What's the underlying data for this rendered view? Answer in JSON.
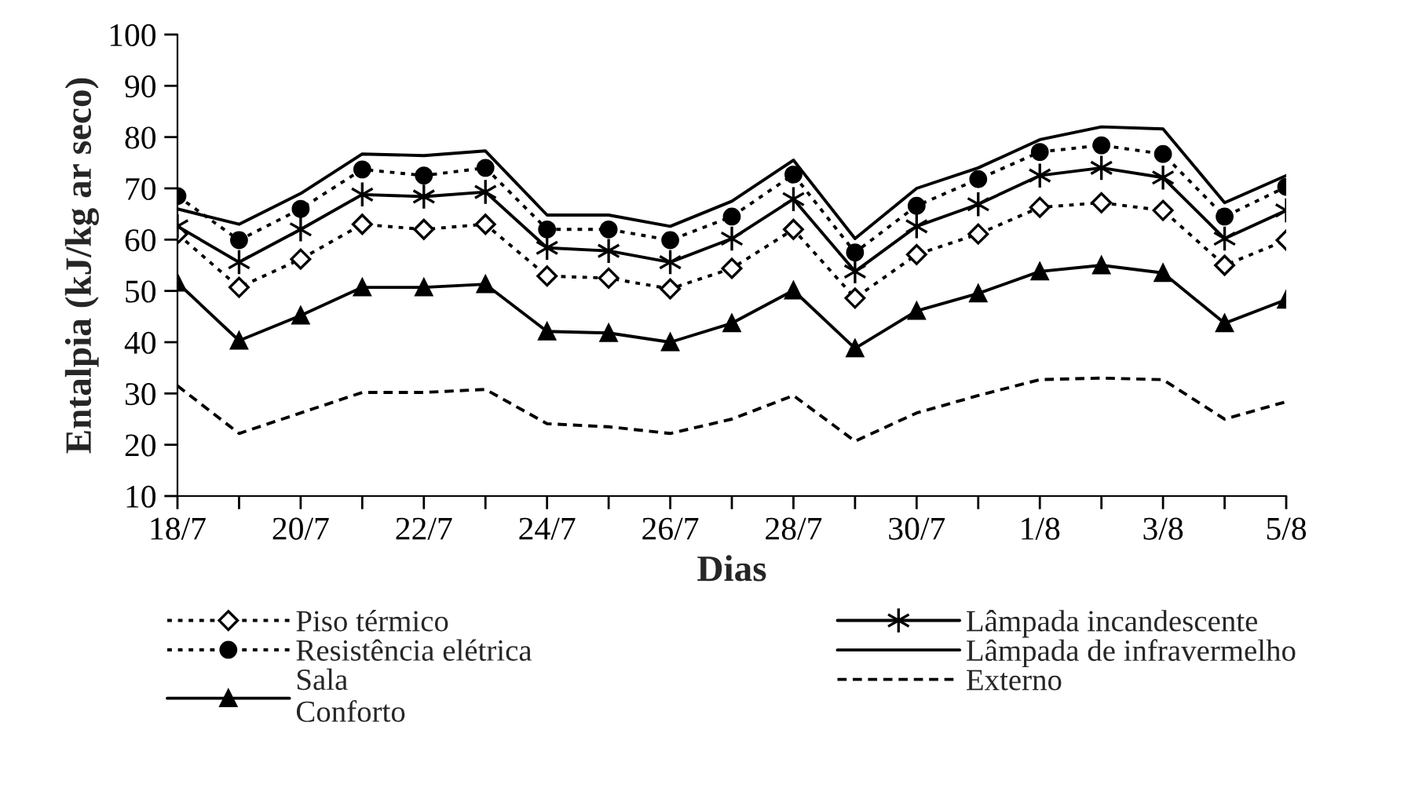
{
  "chart_data": {
    "type": "line",
    "xlabel": "Dias",
    "ylabel": "Entalpia (kJ/kg ar seco)",
    "categories": [
      "18/7",
      null,
      "20/7",
      null,
      "22/7",
      null,
      "24/7",
      null,
      "26/7",
      null,
      "28/7",
      null,
      "30/7",
      null,
      "1/8",
      null,
      "3/8",
      null,
      "5/8"
    ],
    "ylim": [
      10,
      100
    ],
    "yticks": [
      10,
      20,
      30,
      40,
      50,
      60,
      70,
      80,
      90,
      100
    ],
    "grid": false,
    "legend": "bottom",
    "series": [
      {
        "name": "Piso térmico",
        "color": "#000000",
        "marker": "diamond",
        "line_style": "dotted",
        "values": [
          61.1,
          50.7,
          56.2,
          63,
          62,
          63,
          52.9,
          52.5,
          50.4,
          54.4,
          62,
          48.6,
          57.1,
          61.1,
          66.3,
          67.2,
          65.7,
          55,
          59.9
        ]
      },
      {
        "name": "Resistência elétrica",
        "color": "#000000",
        "marker": "circle",
        "line_style": "dotted",
        "values": [
          68.5,
          59.9,
          66,
          73.7,
          72.5,
          74,
          62,
          62,
          59.9,
          64.5,
          72.7,
          57.5,
          66.6,
          71.8,
          77.1,
          78.4,
          76.7,
          64.5,
          70.3
        ]
      },
      {
        "name": "Sala\nConforto",
        "color": "#000000",
        "marker": "triangle",
        "line_style": "solid",
        "values": [
          51.6,
          40.3,
          45.2,
          50.7,
          50.7,
          51.3,
          42.1,
          41.8,
          40,
          43.7,
          50.1,
          38.8,
          46.1,
          49.5,
          53.8,
          55,
          53.5,
          43.7,
          48.3
        ]
      },
      {
        "name": "Lâmpada incandescente",
        "color": "#000000",
        "marker": "cross",
        "line_style": "solid",
        "values": [
          62.6,
          55.6,
          62,
          68.8,
          68.4,
          69.3,
          58.4,
          57.8,
          55.6,
          60.2,
          67.9,
          53.8,
          62.6,
          66.9,
          72.5,
          74,
          72.1,
          60.2,
          65.7
        ]
      },
      {
        "name": "Lâmpada de infravermelho",
        "color": "#000000",
        "marker": "none",
        "line_style": "solid",
        "values": [
          66,
          63,
          69,
          76.7,
          76.4,
          77.3,
          64.8,
          64.8,
          62.6,
          67.5,
          75.5,
          60.2,
          70,
          74,
          79.5,
          82,
          81.6,
          67.2,
          72.5
        ]
      },
      {
        "name": "Externo",
        "color": "#000000",
        "marker": "none",
        "line_style": "dashed",
        "values": [
          31.5,
          22.2,
          26.2,
          30.2,
          30.2,
          30.8,
          24.1,
          23.5,
          22.2,
          25,
          29.6,
          20.7,
          26.2,
          29.6,
          32.7,
          33,
          32.7,
          25,
          28.4
        ]
      }
    ]
  }
}
